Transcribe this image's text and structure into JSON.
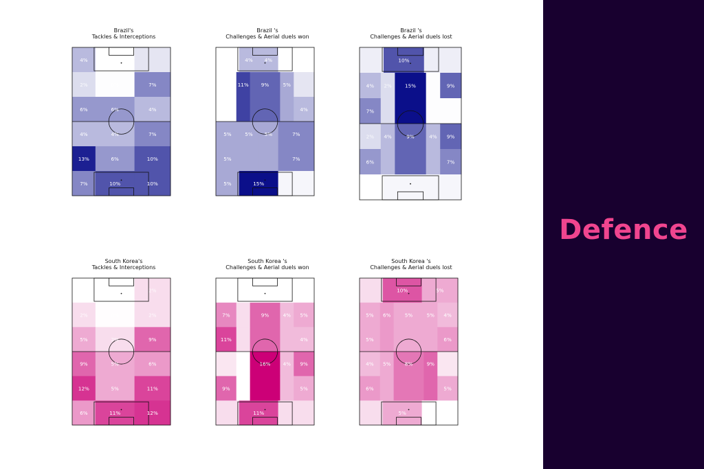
{
  "side_title": "Defence",
  "colors": {
    "brazil": "#0b0f8a",
    "korea": "#cc0077",
    "sidebar_bg": "#18002f",
    "sidebar_text": "#f0458f"
  },
  "chart_data": [
    {
      "type": "heatmap",
      "team": "brazil",
      "title_line1": "Brazil's",
      "title_line2": "Tackles & Interceptions",
      "cells": [
        [
          {
            "v": 4,
            "label": "4%"
          },
          {
            "v": 0,
            "label": "0%"
          },
          {
            "v": 1.5,
            "label": ""
          }
        ],
        [
          {
            "v": 2,
            "label": "2%"
          },
          {
            "v": 0.1,
            "label": "0%"
          },
          {
            "v": 7,
            "label": "7%"
          }
        ],
        [
          {
            "v": 6,
            "label": "6%"
          },
          {
            "v": 6,
            "label": "6%"
          },
          {
            "v": 4,
            "label": "4%"
          }
        ],
        [
          {
            "v": 4,
            "label": "4%"
          },
          {
            "v": 4,
            "label": "4%"
          },
          {
            "v": 7,
            "label": "7%"
          }
        ],
        [
          {
            "v": 13,
            "label": "13%"
          },
          {
            "v": 6,
            "label": "6%"
          },
          {
            "v": 10,
            "label": "10%"
          }
        ],
        [
          {
            "v": 7,
            "label": "7%"
          },
          {
            "v": 10,
            "label": "10%"
          },
          {
            "v": 10,
            "label": "10%"
          }
        ]
      ]
    },
    {
      "type": "heatmap",
      "team": "brazil",
      "title_line1": "Brazil 's",
      "title_line2": "Challenges & Aerial duels won",
      "cells": [
        [
          {
            "v": 0,
            "label": "0%"
          },
          {
            "v": 4,
            "label": "4%"
          },
          {
            "v": 4,
            "label": "4%"
          },
          {
            "v": 0,
            "label": "0%"
          }
        ],
        [
          {
            "v": 0,
            "label": "0%"
          },
          {
            "v": 11,
            "label": "11%"
          },
          {
            "v": 9,
            "label": "9%"
          },
          {
            "v": 5,
            "label": "5%"
          },
          {
            "v": 1.5,
            "label": ""
          }
        ],
        [
          {
            "v": 0,
            "label": "0%"
          },
          {
            "v": 11,
            "label": ""
          },
          {
            "v": 9,
            "label": ""
          },
          {
            "v": 5,
            "label": ""
          },
          {
            "v": 4,
            "label": "4%"
          }
        ],
        [
          {
            "v": 5,
            "label": "5%"
          },
          {
            "v": 5,
            "label": "5%"
          },
          {
            "v": 5,
            "label": "5%"
          },
          {
            "v": 7,
            "label": "7%"
          }
        ],
        [
          {
            "v": 5,
            "label": "5%"
          },
          {
            "v": 5,
            "label": ""
          },
          {
            "v": 5,
            "label": ""
          },
          {
            "v": 7,
            "label": "7%"
          }
        ],
        [
          {
            "v": 5,
            "label": "5%"
          },
          {
            "v": 15,
            "label": "15%"
          },
          {
            "v": 0.5,
            "label": ""
          }
        ]
      ]
    },
    {
      "type": "heatmap",
      "team": "brazil",
      "title_line1": "Brazil 's",
      "title_line2": "Challenges & Aerial duels lost",
      "cells": [
        [
          {
            "v": 1,
            "label": ""
          },
          {
            "v": 10,
            "label": "10%"
          },
          {
            "v": 1,
            "label": ""
          }
        ],
        [
          {
            "v": 4,
            "label": "4%"
          },
          {
            "v": 2,
            "label": "2%"
          },
          {
            "v": 15,
            "label": "15%"
          },
          {
            "v": 0.1,
            "label": ""
          },
          {
            "v": 9,
            "label": "9%"
          }
        ],
        [
          {
            "v": 7,
            "label": "7%"
          },
          {
            "v": 2,
            "label": ""
          },
          {
            "v": 15,
            "label": ""
          },
          {
            "v": 0.1,
            "label": ""
          },
          {
            "v": 0.1,
            "label": ""
          }
        ],
        [
          {
            "v": 2,
            "label": "2%"
          },
          {
            "v": 4,
            "label": "4%"
          },
          {
            "v": 9,
            "label": "9%"
          },
          {
            "v": 4,
            "label": "4%"
          },
          {
            "v": 9,
            "label": "9%"
          }
        ],
        [
          {
            "v": 6,
            "label": "6%"
          },
          {
            "v": 4,
            "label": ""
          },
          {
            "v": 9,
            "label": ""
          },
          {
            "v": 4,
            "label": ""
          },
          {
            "v": 7,
            "label": "7%"
          }
        ],
        [
          {
            "v": 0,
            "label": "0%"
          },
          {
            "v": 0.5,
            "label": ""
          },
          {
            "v": 0.5,
            "label": ""
          }
        ]
      ]
    },
    {
      "type": "heatmap",
      "team": "korea",
      "title_line1": "South Korea's",
      "title_line2": "Tackles & Interceptions",
      "cells": [
        [
          {
            "v": 0,
            "label": "0%"
          },
          {
            "v": 0,
            "label": ""
          },
          {
            "v": 2,
            "label": "2%"
          }
        ],
        [
          {
            "v": 2,
            "label": "2%"
          },
          {
            "v": 0.1,
            "label": "0%"
          },
          {
            "v": 2,
            "label": "2%"
          }
        ],
        [
          {
            "v": 5,
            "label": "5%"
          },
          {
            "v": 2,
            "label": "2%"
          },
          {
            "v": 9,
            "label": "9%"
          }
        ],
        [
          {
            "v": 9,
            "label": "9%"
          },
          {
            "v": 5,
            "label": "5%"
          },
          {
            "v": 6,
            "label": "6%"
          }
        ],
        [
          {
            "v": 12,
            "label": "12%"
          },
          {
            "v": 5,
            "label": "5%"
          },
          {
            "v": 11,
            "label": "11%"
          }
        ],
        [
          {
            "v": 6,
            "label": "6%"
          },
          {
            "v": 11,
            "label": "11%"
          },
          {
            "v": 12,
            "label": "12%"
          }
        ]
      ]
    },
    {
      "type": "heatmap",
      "team": "korea",
      "title_line1": "South Korea 's",
      "title_line2": "Challenges & Aerial duels won",
      "cells": [
        [
          {
            "v": 0,
            "label": "0%"
          },
          {
            "v": 0,
            "label": "0%"
          },
          {
            "v": 0,
            "label": "0%"
          },
          {
            "v": 0,
            "label": "0%"
          }
        ],
        [
          {
            "v": 7,
            "label": "7%"
          },
          {
            "v": 2,
            "label": ""
          },
          {
            "v": 9,
            "label": "9%"
          },
          {
            "v": 4,
            "label": "4%"
          },
          {
            "v": 5,
            "label": "5%"
          }
        ],
        [
          {
            "v": 11,
            "label": "11%"
          },
          {
            "v": 2,
            "label": ""
          },
          {
            "v": 9,
            "label": ""
          },
          {
            "v": 4,
            "label": ""
          },
          {
            "v": 4,
            "label": "4%"
          }
        ],
        [
          {
            "v": 1.5,
            "label": ""
          },
          {
            "v": 0,
            "label": "0%"
          },
          {
            "v": 16,
            "label": "16%"
          },
          {
            "v": 4,
            "label": "4%"
          },
          {
            "v": 9,
            "label": "9%"
          }
        ],
        [
          {
            "v": 9,
            "label": "9%"
          },
          {
            "v": 0,
            "label": ""
          },
          {
            "v": 16,
            "label": ""
          },
          {
            "v": 4,
            "label": ""
          },
          {
            "v": 5,
            "label": "5%"
          }
        ],
        [
          {
            "v": 2,
            "label": ""
          },
          {
            "v": 11,
            "label": "11%"
          },
          {
            "v": 2,
            "label": ""
          }
        ]
      ]
    },
    {
      "type": "heatmap",
      "team": "korea",
      "title_line1": "South Korea 's",
      "title_line2": "Challenges & Aerial duels lost",
      "cells": [
        [
          {
            "v": 2,
            "label": ""
          },
          {
            "v": 10,
            "label": "10%"
          },
          {
            "v": 5,
            "label": "5%"
          }
        ],
        [
          {
            "v": 5,
            "label": "5%"
          },
          {
            "v": 6,
            "label": "6%"
          },
          {
            "v": 5,
            "label": "5%"
          },
          {
            "v": 5,
            "label": "5%"
          },
          {
            "v": 4,
            "label": "4%"
          }
        ],
        [
          {
            "v": 5,
            "label": "5%"
          },
          {
            "v": 6,
            "label": ""
          },
          {
            "v": 5,
            "label": ""
          },
          {
            "v": 5,
            "label": ""
          },
          {
            "v": 6,
            "label": "6%"
          }
        ],
        [
          {
            "v": 4,
            "label": "4%"
          },
          {
            "v": 5,
            "label": "5%"
          },
          {
            "v": 8,
            "label": "8%"
          },
          {
            "v": 9,
            "label": "9%"
          },
          {
            "v": 1.5,
            "label": ""
          }
        ],
        [
          {
            "v": 6,
            "label": "6%"
          },
          {
            "v": 5,
            "label": ""
          },
          {
            "v": 8,
            "label": ""
          },
          {
            "v": 9,
            "label": ""
          },
          {
            "v": 5,
            "label": "5%"
          }
        ],
        [
          {
            "v": 2,
            "label": ""
          },
          {
            "v": 5,
            "label": "5%"
          },
          {
            "v": 0,
            "label": "0%"
          }
        ]
      ]
    }
  ]
}
